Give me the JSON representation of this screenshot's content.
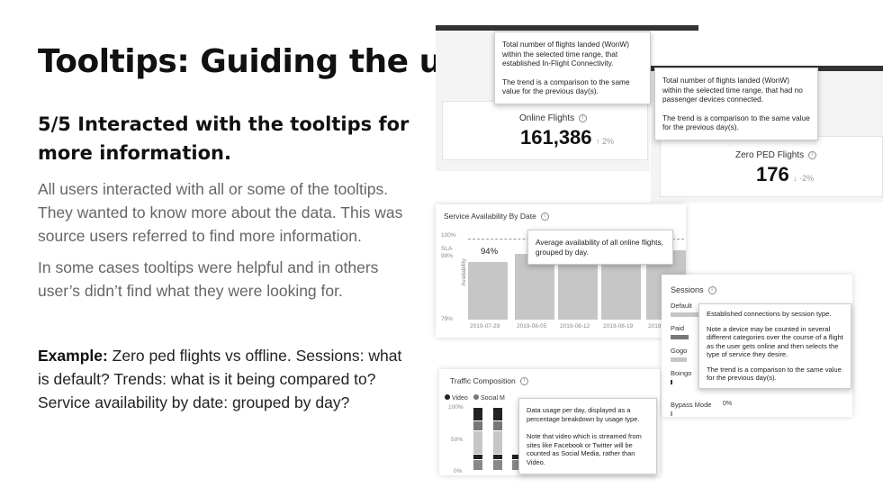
{
  "slide": {
    "title": "Tooltips: Guiding the user",
    "subtitle": "5/5  Interacted with the tooltips for more information.",
    "para1": "All users interacted with all or some of the tooltips. They wanted to know more about the data. This was source users referred to find more information.",
    "para2": "In some cases tooltips were helpful and in others user’s didn’t find what they were looking for.",
    "example_label": "Example:",
    "example_text": " Zero ped flights vs offline. Sessions: what is default? Trends: what is it being compared to?  Service availability by date: grouped by day?"
  },
  "online": {
    "label": "Online Flights",
    "value": "161,386",
    "trend": "↑ 2%",
    "tip1": "Total number of flights landed (WonW) within the selected time range, that established In-Flight Connectivity.",
    "tip2": "The trend is a comparison to the same value for the previous day(s)."
  },
  "zeroped": {
    "label": "Zero PED Flights",
    "value": "176",
    "trend": "↓ -2%",
    "tip1": "Total number of flights landed (WonW) within the selected time range, that had no passenger devices connected.",
    "tip2": "The trend is a comparison to the same value for the previous day(s)."
  },
  "service": {
    "title": "Service Availability By Date",
    "y_top": "100%",
    "sla": "SLA",
    "sla_val": "99%",
    "y_bottom": "79%",
    "ylabel": "Availability",
    "bar_label": "94%",
    "bar_values": [
      94,
      null,
      null,
      null,
      97
    ],
    "dates": [
      "2019-07-29",
      "2019-08-05",
      "2019-08-12",
      "2019-08-19",
      "2019"
    ],
    "tip": "Average availability of all online flights, grouped by day."
  },
  "sessions": {
    "title": "Sessions",
    "rows": [
      "Default",
      "Paid",
      "Gogo",
      "Boingo",
      "Bypass Mode"
    ],
    "bypass_val": "0%",
    "tip1": "Established connections by session type.",
    "tip2": "Note a device may be counted in several different categories over the course of a flight as the user gets online and then selects the type of service they desire.",
    "tip3": "The trend is a comparison to the same value for the previous day(s)."
  },
  "traffic": {
    "title": "Traffic Composition",
    "legend": [
      "Video",
      "Social M"
    ],
    "y_ticks": [
      "100%",
      "50%",
      "0%"
    ],
    "tip1": "Data usage per day, displayed as a percentage breakdown by usage type.",
    "tip2": "Note that video which is streamed from sites like Facebook or Twitter will be counted as Social Media, rather than Video."
  },
  "colors": {
    "dark": "#222222",
    "mid": "#777777",
    "light": "#c6c6c6",
    "panel_bg": "#eeeeee"
  }
}
